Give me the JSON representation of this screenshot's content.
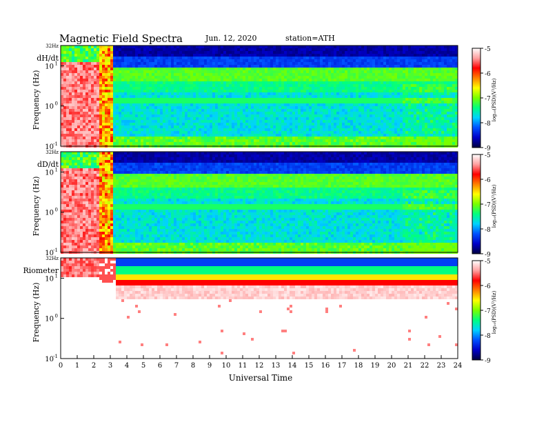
{
  "header": {
    "title": "Magnetic Field Spectra",
    "date": "Jun. 12, 2020",
    "station": "station=ATH"
  },
  "chart_data": {
    "type": "heatmap",
    "xlabel": "Universal Time",
    "xlim": [
      0,
      24
    ],
    "x_ticks": [
      "0",
      "1",
      "2",
      "3",
      "4",
      "5",
      "6",
      "7",
      "8",
      "9",
      "10",
      "11",
      "12",
      "13",
      "14",
      "15",
      "16",
      "17",
      "18",
      "19",
      "20",
      "21",
      "22",
      "23",
      "24"
    ],
    "top_freq_label": "32Hz",
    "y_ticks": [
      {
        "base": "10",
        "exp": "1",
        "value": 10
      },
      {
        "base": "10",
        "exp": "0",
        "value": 1
      },
      {
        "base": "10",
        "exp": "-1",
        "value": 0.1
      }
    ],
    "ylim_hz": [
      0.1,
      32
    ],
    "colorbar": {
      "label": "log₁₀(PSD)(V²/Hz)",
      "ticks": [
        "-5",
        "-6",
        "-7",
        "-8",
        "-9"
      ],
      "range": [
        -9,
        -5
      ],
      "colors": [
        "#000040",
        "#0000c8",
        "#0050ff",
        "#00d2ff",
        "#00ff80",
        "#78ff00",
        "#ffff00",
        "#ff8000",
        "#ff0000",
        "#ffa0a0",
        "#ffffff"
      ]
    },
    "panels": [
      {
        "name": "dH/dt",
        "ylabel": "Frequency (Hz)"
      },
      {
        "name": "dD/dt",
        "ylabel": "Frequency (Hz)"
      },
      {
        "name": "Riometer",
        "ylabel": "Frequency (Hz)"
      }
    ]
  }
}
